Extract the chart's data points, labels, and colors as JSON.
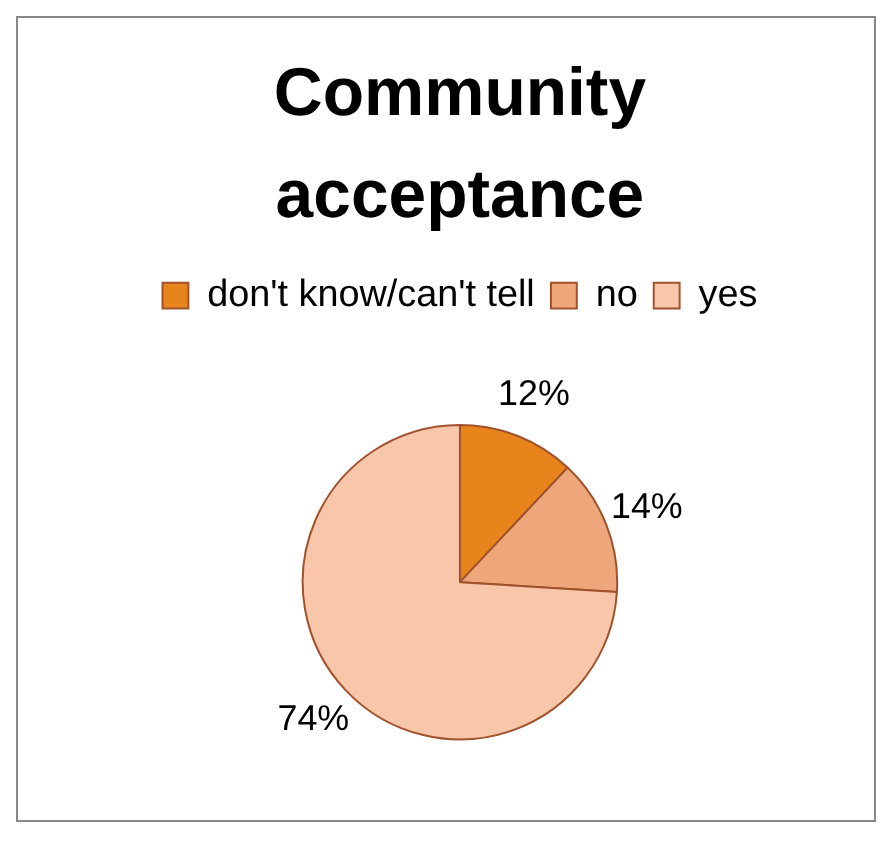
{
  "chart_data": {
    "type": "pie",
    "title": "Community acceptance",
    "categories": [
      "don't know/can't tell",
      "no",
      "yes"
    ],
    "values": [
      12,
      14,
      74
    ],
    "value_labels": [
      "12%",
      "14%",
      "74%"
    ],
    "colors": [
      "#e8841c",
      "#eea77a",
      "#f8c6a8"
    ],
    "legend": "top"
  }
}
